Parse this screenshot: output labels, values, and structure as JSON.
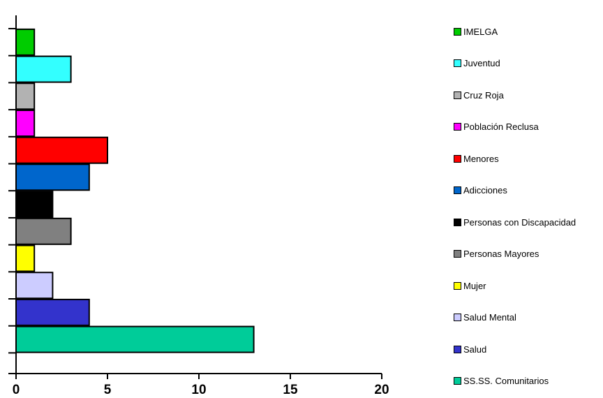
{
  "chart_data": {
    "type": "bar",
    "orientation": "horizontal",
    "categories": [
      "SS.SS. Comunitarios",
      "Salud",
      "Salud Mental",
      "Mujer",
      "Personas Mayores",
      "Personas con Discapacidad",
      "Adicciones",
      "Menores",
      "Población Reclusa",
      "Cruz Roja",
      "Juventud",
      "IMELGA"
    ],
    "values": [
      13,
      4,
      2,
      1,
      3,
      2,
      4,
      5,
      1,
      1,
      3,
      1
    ],
    "colors": [
      "#00CC99",
      "#3333CC",
      "#CCCCFF",
      "#FFFF00",
      "#808080",
      "#000000",
      "#0066CC",
      "#FF0000",
      "#FF00FF",
      "#B2B2B2",
      "#33FFFF",
      "#00CC00"
    ],
    "xlim": [
      0,
      20
    ],
    "xticks": [
      0,
      5,
      10,
      15,
      20
    ],
    "title": "",
    "xlabel": "",
    "ylabel": "",
    "grid": false,
    "legend_position": "right"
  }
}
